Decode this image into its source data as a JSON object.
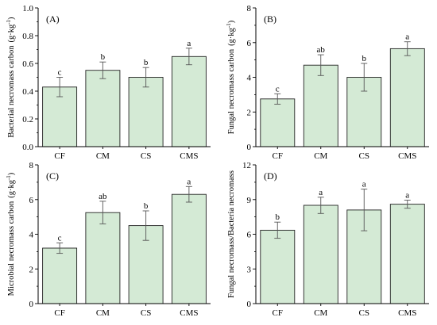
{
  "style": {
    "bar_fill": "#d4ead5",
    "bar_stroke": "#222222",
    "axis_color": "#000000",
    "error_color": "#555555"
  },
  "chart_data": [
    {
      "type": "bar",
      "panel_label": "(A)",
      "ylabel": "Bacterial necromass carbon",
      "yunit": "(g·kg",
      "yunit_sup": "-1",
      "yunit_close": ")",
      "categories": [
        "CF",
        "CM",
        "CS",
        "CMS"
      ],
      "values": [
        0.43,
        0.55,
        0.5,
        0.65
      ],
      "errors": [
        0.07,
        0.06,
        0.07,
        0.06
      ],
      "significance": [
        "c",
        "b",
        "b",
        "a"
      ],
      "ylim": [
        0,
        1.0
      ],
      "yticks": [
        "0.0",
        "0.2",
        "0.4",
        "0.6",
        "0.8",
        "1.0"
      ],
      "ytick_values": [
        0,
        0.2,
        0.4,
        0.6,
        0.8,
        1.0
      ]
    },
    {
      "type": "bar",
      "panel_label": "(B)",
      "ylabel": "Fungal necromass carbon",
      "yunit": "(g·kg",
      "yunit_sup": "-1",
      "yunit_close": ")",
      "categories": [
        "CF",
        "CM",
        "CS",
        "CMS"
      ],
      "values": [
        2.75,
        4.7,
        4.0,
        5.65
      ],
      "errors": [
        0.3,
        0.6,
        0.8,
        0.4
      ],
      "significance": [
        "c",
        "ab",
        "b",
        "a"
      ],
      "ylim": [
        0,
        8
      ],
      "yticks": [
        "0",
        "2",
        "4",
        "6",
        "8"
      ],
      "ytick_values": [
        0,
        2,
        4,
        6,
        8
      ]
    },
    {
      "type": "bar",
      "panel_label": "(C)",
      "ylabel": "Microbial necromass carbon",
      "yunit": "(g·kg",
      "yunit_sup": "-1",
      "yunit_close": ")",
      "categories": [
        "CF",
        "CM",
        "CS",
        "CMS"
      ],
      "values": [
        3.2,
        5.25,
        4.5,
        6.3
      ],
      "errors": [
        0.3,
        0.65,
        0.85,
        0.45
      ],
      "significance": [
        "c",
        "ab",
        "b",
        "a"
      ],
      "ylim": [
        0,
        8
      ],
      "yticks": [
        "0",
        "2",
        "4",
        "6",
        "8"
      ],
      "ytick_values": [
        0,
        2,
        4,
        6,
        8
      ]
    },
    {
      "type": "bar",
      "panel_label": "(D)",
      "ylabel": "Fungal necromass/Bacteria necromass",
      "yunit": "",
      "yunit_sup": "",
      "yunit_close": "",
      "categories": [
        "CF",
        "CM",
        "CS",
        "CMS"
      ],
      "values": [
        6.35,
        8.5,
        8.1,
        8.6
      ],
      "errors": [
        0.7,
        0.7,
        1.8,
        0.35
      ],
      "significance": [
        "b",
        "a",
        "a",
        "a"
      ],
      "ylim": [
        0,
        12
      ],
      "yticks": [
        "0",
        "3",
        "6",
        "9",
        "12"
      ],
      "ytick_values": [
        0,
        3,
        6,
        9,
        12
      ]
    }
  ]
}
